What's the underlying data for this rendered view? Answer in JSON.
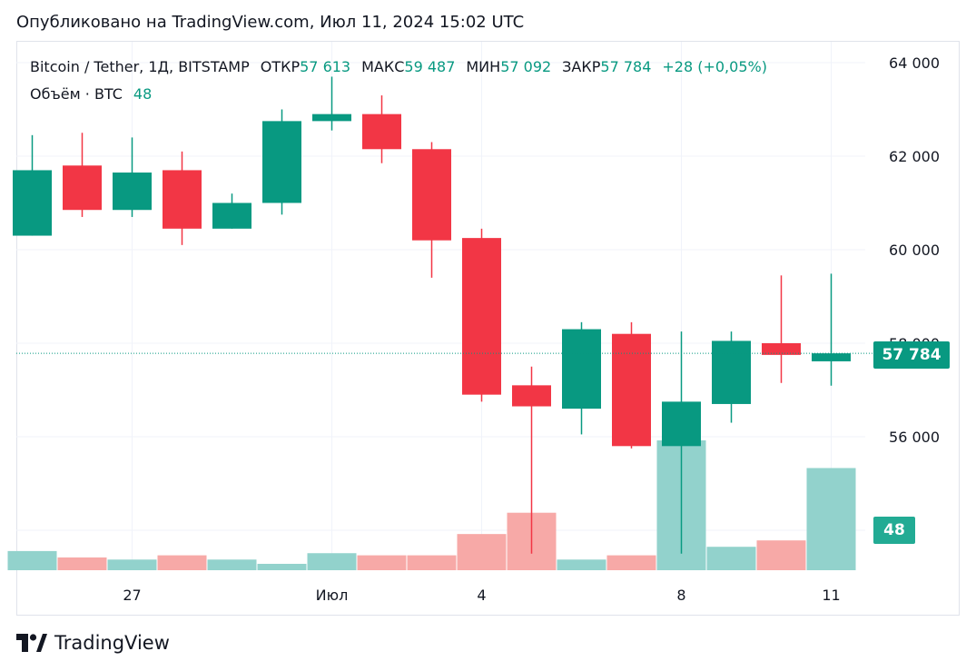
{
  "header": {
    "published": "Опубликовано на TradingView.com, Июл 11, 2024 15:02 UTC"
  },
  "legend": {
    "symbol": "Bitcoin / Tether, 1Д, BITSTAMP",
    "open_label": "ОТКР",
    "open_value": "57 613",
    "high_label": "МАКС",
    "high_value": "59 487",
    "low_label": "МИН",
    "low_value": "57 092",
    "close_label": "ЗАКР",
    "close_value": "57 784",
    "change": "+28 (+0,05%)",
    "volume_label": "Объём · BTC",
    "volume_value": "48"
  },
  "badges": {
    "last_price": "57 784",
    "last_volume": "48"
  },
  "brand": {
    "name": "TradingView"
  },
  "colors": {
    "up": "#089981",
    "down": "#f23645",
    "vol_up": "#92d2cc",
    "vol_down": "#f7a9a7",
    "grid": "#f0f3fa",
    "axis_text": "#131722"
  },
  "chart_data": {
    "type": "candlestick",
    "y_axis": {
      "ticks": [
        56000,
        58000,
        60000,
        62000,
        64000
      ],
      "tick_labels": [
        "56 000",
        "58 000",
        "60 000",
        "62 000",
        "64 000"
      ],
      "range": [
        53200,
        64500
      ],
      "position": "right"
    },
    "x_axis": {
      "tick_labels": [
        "27",
        "Июл",
        "4",
        "8",
        "11"
      ],
      "tick_bar_index": [
        2,
        6,
        9,
        13,
        16
      ]
    },
    "candles": [
      {
        "o": 60300,
        "h": 62450,
        "l": 60300,
        "c": 61700,
        "v": 9
      },
      {
        "o": 61800,
        "h": 62500,
        "l": 60700,
        "c": 60850,
        "v": 6
      },
      {
        "o": 60850,
        "h": 62400,
        "l": 60700,
        "c": 61650,
        "v": 5
      },
      {
        "o": 61700,
        "h": 62100,
        "l": 60100,
        "c": 60450,
        "v": 7
      },
      {
        "o": 60450,
        "h": 61200,
        "l": 60450,
        "c": 61000,
        "v": 5
      },
      {
        "o": 61000,
        "h": 63000,
        "l": 60750,
        "c": 62750,
        "v": 3
      },
      {
        "o": 62750,
        "h": 63700,
        "l": 62550,
        "c": 62900,
        "v": 8
      },
      {
        "o": 62900,
        "h": 63300,
        "l": 61850,
        "c": 62150,
        "v": 7
      },
      {
        "o": 62150,
        "h": 62300,
        "l": 59400,
        "c": 60200,
        "v": 7
      },
      {
        "o": 60250,
        "h": 60450,
        "l": 56750,
        "c": 56900,
        "v": 17
      },
      {
        "o": 57100,
        "h": 57500,
        "l": 53500,
        "c": 56650,
        "v": 27
      },
      {
        "o": 56600,
        "h": 58450,
        "l": 56050,
        "c": 58300,
        "v": 5
      },
      {
        "o": 58200,
        "h": 58450,
        "l": 55750,
        "c": 55800,
        "v": 7
      },
      {
        "o": 55800,
        "h": 58250,
        "l": 53500,
        "c": 56750,
        "v": 61
      },
      {
        "o": 56700,
        "h": 58250,
        "l": 56300,
        "c": 58050,
        "v": 11
      },
      {
        "o": 58000,
        "h": 59450,
        "l": 57150,
        "c": 57750,
        "v": 14
      },
      {
        "o": 57613,
        "h": 59487,
        "l": 57092,
        "c": 57784,
        "v": 48
      }
    ]
  }
}
